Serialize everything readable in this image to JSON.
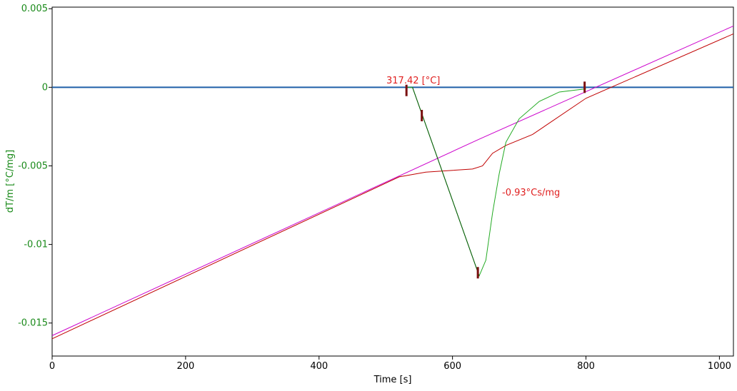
{
  "chart_data": {
    "type": "line",
    "x_label": "Time [s]",
    "y_label": "dT/m  [°C/mg]",
    "xlim": [
      0,
      1021
    ],
    "ylim": [
      -0.0171,
      0.0051
    ],
    "xticks": [
      0,
      200,
      400,
      600,
      800,
      1000
    ],
    "yticks": [
      0.005,
      0,
      -0.005,
      -0.01,
      -0.015
    ],
    "series": [
      {
        "color": "#1f5fa8",
        "x": [
          0,
          1021
        ],
        "values": [
          0,
          0
        ]
      },
      {
        "color": "#cc00cc",
        "x": [
          0,
          640,
          1021
        ],
        "values": [
          -0.0158,
          -0.0033,
          0.0039
        ]
      },
      {
        "color": "#c00000",
        "x": [
          0,
          520,
          560,
          630,
          645,
          660,
          680,
          720,
          800,
          1021
        ],
        "values": [
          -0.016,
          -0.0057,
          -0.0054,
          -0.0052,
          -0.005,
          -0.0042,
          -0.0037,
          -0.003,
          -0.0007,
          0.0034
        ]
      },
      {
        "color": "#22aa22",
        "x": [
          530,
          540,
          640,
          650,
          660,
          670,
          680,
          700,
          730,
          760,
          800
        ],
        "values": [
          0,
          0,
          -0.012,
          -0.011,
          -0.008,
          -0.0055,
          -0.0035,
          -0.002,
          -0.0009,
          -0.0003,
          -0.0001
        ]
      },
      {
        "color": "#0a5a0a",
        "x": [
          540,
          640
        ],
        "values": [
          0,
          -0.012
        ]
      }
    ],
    "markers": {
      "color": "#7a1010",
      "x": [
        531,
        554,
        638,
        798
      ],
      "values": [
        -0.0002,
        -0.0018,
        -0.0118,
        0
      ]
    },
    "annotations": [
      {
        "text": "317.42 [°C]",
        "color": "#e02020"
      },
      {
        "text": "-0.93°Cs/mg",
        "color": "#e02020"
      }
    ]
  }
}
